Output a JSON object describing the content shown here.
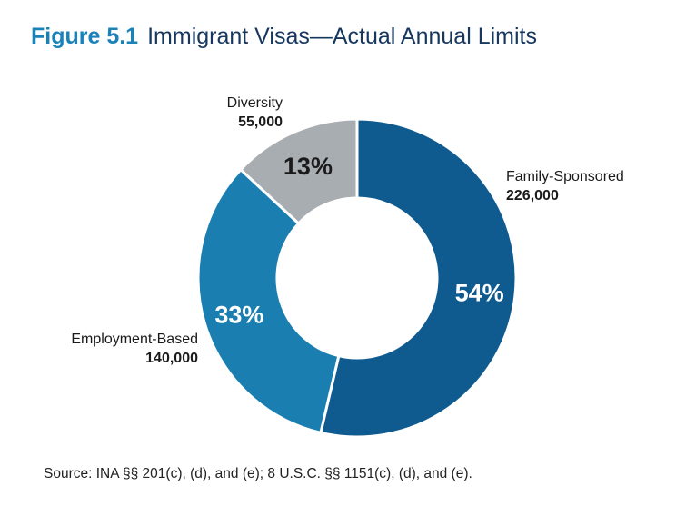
{
  "header": {
    "figure_label": "Figure 5.1",
    "title": "Immigrant Visas—Actual Annual Limits"
  },
  "chart_data": {
    "type": "pie",
    "donut": true,
    "categories": [
      "Family-Sponsored",
      "Employment-Based",
      "Diversity"
    ],
    "values": [
      226000,
      140000,
      55000
    ],
    "value_labels": [
      "226,000",
      "140,000",
      "55,000"
    ],
    "percent_labels": [
      "54%",
      "33%",
      "13%"
    ],
    "colors": [
      "#0f5a8f",
      "#1a7fb0",
      "#a8adb2"
    ],
    "start_angle_deg": 0,
    "direction": "clockwise"
  },
  "footer": {
    "source": "Source: INA §§ 201(c), (d), and (e); 8 U.S.C. §§ 1151(c), (d), and (e)."
  }
}
